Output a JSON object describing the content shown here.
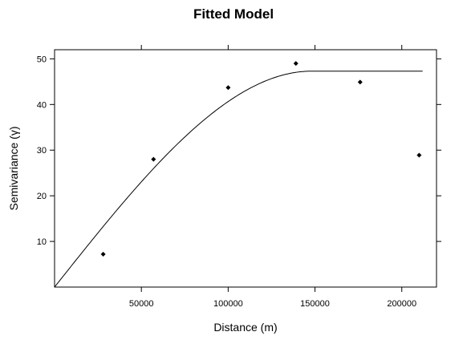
{
  "chart_data": {
    "type": "scatter",
    "title": "Fitted Model",
    "xlabel": "Distance (m)",
    "ylabel": "Semivariance (γ)",
    "xlim": [
      0,
      220000
    ],
    "ylim": [
      0,
      52
    ],
    "x_ticks": [
      50000,
      100000,
      150000,
      200000
    ],
    "x_tick_labels": [
      "50000",
      "100000",
      "150000",
      "200000"
    ],
    "y_ticks": [
      10,
      20,
      30,
      40,
      50
    ],
    "y_tick_labels": [
      "10",
      "20",
      "30",
      "40",
      "50"
    ],
    "grid": false,
    "series": [
      {
        "kind": "points",
        "color": "#000000",
        "x": [
          28000,
          57000,
          100000,
          139000,
          176000,
          210000
        ],
        "y": [
          7.2,
          28.0,
          43.7,
          49.0,
          44.9,
          28.9
        ]
      },
      {
        "kind": "line",
        "color": "#000000",
        "model": "spherical",
        "nugget": 0,
        "sill": 47.3,
        "range": 148000,
        "x_max": 212000
      }
    ]
  }
}
